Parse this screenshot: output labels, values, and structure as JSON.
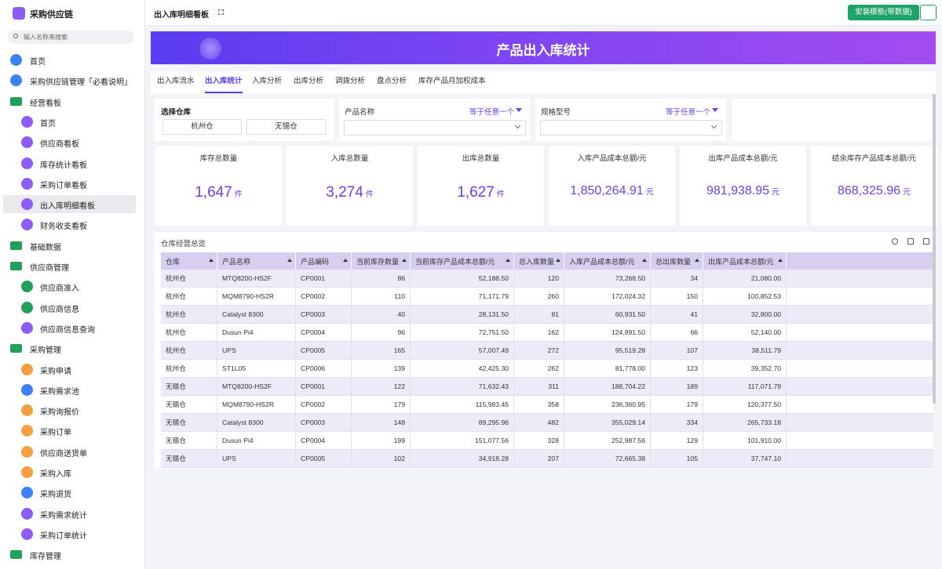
{
  "app": {
    "name": "采购供应链",
    "search_placeholder": "输入名称来搜索"
  },
  "sidebar": [
    {
      "label": "首页"
    },
    {
      "label": "采购供应链管理「必看说明」"
    },
    {
      "label": "经营看板",
      "children": [
        {
          "label": "首页"
        },
        {
          "label": "供应商看板"
        },
        {
          "label": "库存统计看板"
        },
        {
          "label": "采购订单看板"
        },
        {
          "label": "出入库明细看板",
          "selected": true
        },
        {
          "label": "财务收支看板"
        }
      ]
    },
    {
      "label": "基础数据"
    },
    {
      "label": "供应商管理",
      "children": [
        {
          "label": "供应商准入"
        },
        {
          "label": "供应商信息"
        },
        {
          "label": "供应商信息查询"
        }
      ]
    },
    {
      "label": "采购管理",
      "children": [
        {
          "label": "采购申请"
        },
        {
          "label": "采购需求池"
        },
        {
          "label": "采购询报价"
        },
        {
          "label": "采购订单"
        },
        {
          "label": "供应商送货单"
        },
        {
          "label": "采购入库"
        },
        {
          "label": "采购退货"
        },
        {
          "label": "采购需求统计"
        },
        {
          "label": "采购订单统计"
        }
      ]
    },
    {
      "label": "库存管理"
    }
  ],
  "header": {
    "title": "出入库明细看板",
    "install_button": "安装模板(带数据)"
  },
  "banner": {
    "title": "产品出入库统计"
  },
  "tabs": {
    "items": [
      "出入库流水",
      "出入库统计",
      "入库分析",
      "出库分析",
      "调拨分析",
      "盘点分析",
      "库存产品月加权成本"
    ],
    "active": 1
  },
  "filters": [
    {
      "label": "选择仓库",
      "options": [
        "杭州仓",
        "无锡仓"
      ]
    },
    {
      "label": "产品名称",
      "operator": "等于任意一个"
    },
    {
      "label": "规格型号",
      "operator": "等于任意一个"
    }
  ],
  "kpis": [
    {
      "label": "库存总数量",
      "value": "1,647",
      "unit": "件"
    },
    {
      "label": "入库总数量",
      "value": "3,274",
      "unit": "件"
    },
    {
      "label": "出库总数量",
      "value": "1,627",
      "unit": "件"
    },
    {
      "label": "入库产品成本总额/元",
      "value": "1,850,264.91",
      "unit": "元"
    },
    {
      "label": "出库产品成本总额/元",
      "value": "981,938.95",
      "unit": "元"
    },
    {
      "label": "结余库存产品成本总额/元",
      "value": "868,325.96",
      "unit": "元"
    }
  ],
  "table": {
    "title": "仓库经营总览",
    "columns": [
      "仓库",
      "产品名称",
      "产品编码",
      "当前库存数量",
      "当前库存产品成本总额/元",
      "总入库数量",
      "入库产品成本总额/元",
      "总出库数量",
      "出库产品成本总额/元"
    ],
    "rows": [
      [
        "杭州仓",
        "MTQ8200-HS2F",
        "CP0001",
        "86",
        "52,188.50",
        "120",
        "73,268.50",
        "34",
        "21,080.00"
      ],
      [
        "杭州仓",
        "MQM8790-HS2R",
        "CP0002",
        "110",
        "71,171.79",
        "260",
        "172,024.32",
        "150",
        "100,852.53"
      ],
      [
        "杭州仓",
        "Catalyst 8300",
        "CP0003",
        "40",
        "28,131.50",
        "81",
        "60,931.50",
        "41",
        "32,800.00"
      ],
      [
        "杭州仓",
        "Dusun Pi4",
        "CP0004",
        "96",
        "72,751.50",
        "162",
        "124,891.50",
        "66",
        "52,140.00"
      ],
      [
        "杭州仓",
        "UPS",
        "CP0005",
        "165",
        "57,007.49",
        "272",
        "95,519.28",
        "107",
        "38,511.79"
      ],
      [
        "杭州仓",
        "ST1L05",
        "CP0006",
        "139",
        "42,425.30",
        "262",
        "81,778.00",
        "123",
        "39,352.70"
      ],
      [
        "无锡仓",
        "MTQ8200-HS2F",
        "CP0001",
        "122",
        "71,632.43",
        "311",
        "188,704.22",
        "189",
        "117,071.79"
      ],
      [
        "无锡仓",
        "MQM8790-HS2R",
        "CP0002",
        "179",
        "115,983.45",
        "358",
        "236,360.95",
        "179",
        "120,377.50"
      ],
      [
        "无锡仓",
        "Catalyst 8300",
        "CP0003",
        "148",
        "89,295.96",
        "482",
        "355,029.14",
        "334",
        "265,733.18"
      ],
      [
        "无锡仓",
        "Dusun Pi4",
        "CP0004",
        "199",
        "151,077.56",
        "328",
        "252,987.56",
        "129",
        "101,910.00"
      ],
      [
        "无锡仓",
        "UPS",
        "CP0005",
        "102",
        "34,918.28",
        "207",
        "72,665.38",
        "105",
        "37,747.10"
      ]
    ]
  }
}
